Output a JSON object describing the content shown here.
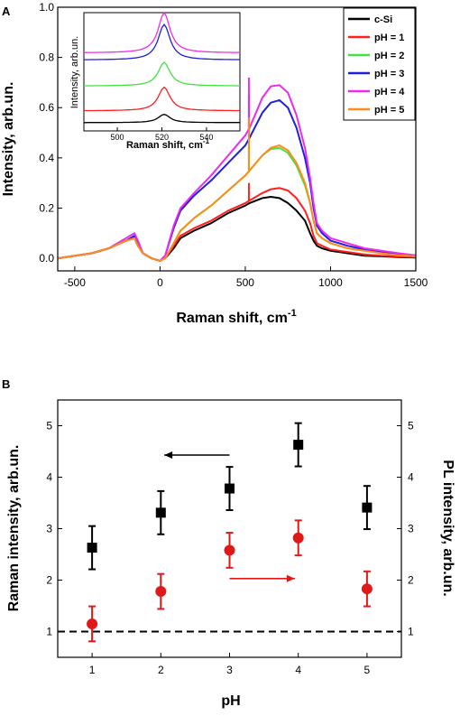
{
  "chart_data": [
    {
      "panel": "A",
      "type": "line",
      "xlabel": "Raman shift, cm",
      "xlabel_sup": "-1",
      "ylabel": "Intensity, arb.un.",
      "xlim": [
        -600,
        1500
      ],
      "ylim": [
        -0.05,
        1.0
      ],
      "xticks": [
        -500,
        0,
        500,
        1000,
        1500
      ],
      "yticks": [
        0.0,
        0.2,
        0.4,
        0.6,
        0.8,
        1.0
      ],
      "xtick_labels": [
        "-500",
        "0",
        "500",
        "1000",
        "1500"
      ],
      "ytick_labels": [
        "0.0",
        "0.2",
        "0.4",
        "0.6",
        "0.8",
        "1.0"
      ],
      "legend_position": "top-right",
      "series": [
        {
          "name": "c-Si",
          "color": "#000000",
          "spike": 0,
          "x": [
            -600,
            -400,
            -300,
            -200,
            -150,
            -130,
            -100,
            -50,
            0,
            30,
            80,
            120,
            200,
            300,
            400,
            500,
            525,
            600,
            650,
            700,
            750,
            800,
            850,
            880,
            900,
            920,
            950,
            1000,
            1100,
            1200,
            1300,
            1400,
            1500
          ],
          "y": [
            0.0,
            0.02,
            0.04,
            0.07,
            0.08,
            0.05,
            0.02,
            0.0,
            -0.01,
            0.0,
            0.04,
            0.08,
            0.11,
            0.14,
            0.18,
            0.21,
            0.22,
            0.24,
            0.245,
            0.24,
            0.22,
            0.19,
            0.15,
            0.1,
            0.07,
            0.05,
            0.04,
            0.03,
            0.02,
            0.01,
            0.008,
            0.005,
            0.003
          ]
        },
        {
          "name": "pH = 1",
          "color": "#ff1f1f",
          "spike": 0.07,
          "x": [
            -600,
            -400,
            -300,
            -200,
            -150,
            -130,
            -100,
            -50,
            0,
            30,
            80,
            120,
            200,
            300,
            400,
            500,
            525,
            600,
            650,
            700,
            750,
            800,
            850,
            880,
            900,
            920,
            950,
            1000,
            1100,
            1200,
            1300,
            1400,
            1500
          ],
          "y": [
            0.0,
            0.02,
            0.04,
            0.07,
            0.08,
            0.05,
            0.02,
            0.0,
            -0.01,
            0.0,
            0.05,
            0.09,
            0.12,
            0.15,
            0.19,
            0.22,
            0.23,
            0.26,
            0.275,
            0.28,
            0.27,
            0.24,
            0.19,
            0.14,
            0.09,
            0.06,
            0.05,
            0.035,
            0.025,
            0.015,
            0.01,
            0.007,
            0.005
          ]
        },
        {
          "name": "pH = 2",
          "color": "#44e044",
          "spike": 0.12,
          "x": [
            -600,
            -400,
            -300,
            -200,
            -150,
            -130,
            -100,
            -50,
            0,
            30,
            80,
            120,
            200,
            300,
            400,
            500,
            525,
            600,
            650,
            700,
            750,
            800,
            850,
            880,
            900,
            920,
            950,
            1000,
            1100,
            1200,
            1300,
            1400,
            1500
          ],
          "y": [
            0.0,
            0.02,
            0.04,
            0.07,
            0.08,
            0.05,
            0.02,
            0.0,
            -0.01,
            0.0,
            0.06,
            0.11,
            0.16,
            0.21,
            0.27,
            0.33,
            0.35,
            0.41,
            0.435,
            0.44,
            0.42,
            0.37,
            0.29,
            0.22,
            0.15,
            0.1,
            0.08,
            0.06,
            0.04,
            0.03,
            0.02,
            0.012,
            0.008
          ]
        },
        {
          "name": "pH = 3",
          "color": "#1f1fdd",
          "spike": 0.17,
          "x": [
            -600,
            -400,
            -300,
            -200,
            -150,
            -130,
            -100,
            -50,
            0,
            30,
            80,
            120,
            200,
            300,
            400,
            500,
            525,
            600,
            650,
            700,
            750,
            800,
            850,
            880,
            900,
            920,
            950,
            1000,
            1100,
            1200,
            1300,
            1400,
            1500
          ],
          "y": [
            0.0,
            0.02,
            0.04,
            0.07,
            0.09,
            0.06,
            0.02,
            0.0,
            -0.01,
            0.01,
            0.12,
            0.19,
            0.25,
            0.31,
            0.38,
            0.45,
            0.48,
            0.58,
            0.62,
            0.63,
            0.6,
            0.52,
            0.4,
            0.3,
            0.2,
            0.13,
            0.1,
            0.07,
            0.05,
            0.035,
            0.025,
            0.015,
            0.01
          ]
        },
        {
          "name": "pH = 4",
          "color": "#ee2aee",
          "spike": 0.2,
          "x": [
            -600,
            -400,
            -300,
            -200,
            -150,
            -130,
            -100,
            -50,
            0,
            30,
            80,
            120,
            200,
            300,
            400,
            500,
            525,
            600,
            650,
            700,
            750,
            800,
            850,
            880,
            900,
            920,
            950,
            1000,
            1100,
            1200,
            1300,
            1400,
            1500
          ],
          "y": [
            0.0,
            0.02,
            0.04,
            0.08,
            0.1,
            0.07,
            0.02,
            0.0,
            -0.01,
            0.01,
            0.13,
            0.2,
            0.26,
            0.33,
            0.41,
            0.49,
            0.52,
            0.64,
            0.685,
            0.69,
            0.66,
            0.57,
            0.44,
            0.32,
            0.22,
            0.14,
            0.11,
            0.08,
            0.06,
            0.04,
            0.03,
            0.02,
            0.012
          ]
        },
        {
          "name": "pH = 5",
          "color": "#ff8c1a",
          "spike": 0.21,
          "x": [
            -600,
            -400,
            -300,
            -200,
            -150,
            -130,
            -100,
            -50,
            0,
            30,
            80,
            120,
            200,
            300,
            400,
            500,
            525,
            600,
            650,
            700,
            750,
            800,
            850,
            880,
            900,
            920,
            950,
            1000,
            1100,
            1200,
            1300,
            1400,
            1500
          ],
          "y": [
            0.0,
            0.02,
            0.04,
            0.07,
            0.08,
            0.05,
            0.02,
            0.0,
            -0.01,
            0.0,
            0.06,
            0.11,
            0.16,
            0.21,
            0.27,
            0.33,
            0.35,
            0.41,
            0.44,
            0.45,
            0.43,
            0.38,
            0.3,
            0.22,
            0.15,
            0.1,
            0.08,
            0.06,
            0.04,
            0.03,
            0.02,
            0.012,
            0.008
          ]
        }
      ],
      "inset": {
        "xlabel": "Raman shift, cm",
        "xlabel_sup": "-1",
        "ylabel": "Intensity, arb.un.",
        "xlim": [
          485,
          555
        ],
        "xticks": [
          500,
          520,
          540
        ],
        "xtick_labels": [
          "500",
          "520",
          "540"
        ],
        "peak": 521,
        "series": [
          {
            "color": "#000000",
            "baseline": 0.07,
            "height": 0.07
          },
          {
            "color": "#ff1f1f",
            "baseline": 0.17,
            "height": 0.2
          },
          {
            "color": "#44e044",
            "baseline": 0.38,
            "height": 0.2
          },
          {
            "color": "#1f1fdd",
            "baseline": 0.6,
            "height": 0.3
          },
          {
            "color": "#ee2aee",
            "baseline": 0.66,
            "height": 0.34
          }
        ]
      }
    },
    {
      "panel": "B",
      "type": "scatter",
      "xlabel": "pH",
      "ylabel_left": "Raman intensity, arb.un.",
      "ylabel_right": "PL intensity, arb.un.",
      "xlim": [
        0.5,
        5.5
      ],
      "ylim": [
        0.5,
        5.5
      ],
      "xticks": [
        1,
        2,
        3,
        4,
        5
      ],
      "yticks": [
        1,
        2,
        3,
        4,
        5
      ],
      "xtick_labels": [
        "1",
        "2",
        "3",
        "4",
        "5"
      ],
      "ytick_labels": [
        "1",
        "2",
        "3",
        "4",
        "5"
      ],
      "reference_line_y": 1,
      "series": [
        {
          "name": "Raman",
          "axis": "left",
          "marker": "square",
          "color": "#000000",
          "x": [
            1,
            2,
            3,
            4,
            5
          ],
          "y": [
            2.63,
            3.31,
            3.78,
            4.63,
            3.41
          ],
          "err": [
            0.42,
            0.42,
            0.42,
            0.42,
            0.42
          ]
        },
        {
          "name": "PL",
          "axis": "right",
          "marker": "circle",
          "color": "#e01818",
          "x": [
            1,
            2,
            3,
            4,
            5
          ],
          "y": [
            1.15,
            1.78,
            2.58,
            2.82,
            1.83
          ],
          "err": [
            0.34,
            0.34,
            0.34,
            0.34,
            0.34
          ]
        }
      ],
      "arrows": [
        {
          "color": "#000000",
          "from": [
            3.0,
            4.43
          ],
          "to": [
            2.05,
            4.43
          ]
        },
        {
          "color": "#e01818",
          "from": [
            3.0,
            2.03
          ],
          "to": [
            3.95,
            2.03
          ]
        }
      ]
    }
  ],
  "panel_labels": {
    "a": "A",
    "b": "B"
  }
}
